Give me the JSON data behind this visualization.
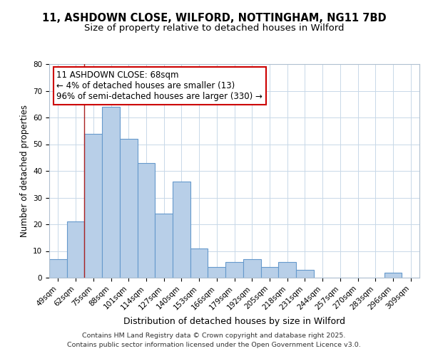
{
  "title1": "11, ASHDOWN CLOSE, WILFORD, NOTTINGHAM, NG11 7BD",
  "title2": "Size of property relative to detached houses in Wilford",
  "xlabel": "Distribution of detached houses by size in Wilford",
  "ylabel": "Number of detached properties",
  "categories": [
    "49sqm",
    "62sqm",
    "75sqm",
    "88sqm",
    "101sqm",
    "114sqm",
    "127sqm",
    "140sqm",
    "153sqm",
    "166sqm",
    "179sqm",
    "192sqm",
    "205sqm",
    "218sqm",
    "231sqm",
    "244sqm",
    "257sqm",
    "270sqm",
    "283sqm",
    "296sqm",
    "309sqm"
  ],
  "values": [
    7,
    21,
    54,
    64,
    52,
    43,
    24,
    36,
    11,
    4,
    6,
    7,
    4,
    6,
    3,
    0,
    0,
    0,
    0,
    2,
    0
  ],
  "bar_color": "#b8cfe8",
  "bar_edge_color": "#6699cc",
  "vline_color": "#aa2222",
  "annotation_line1": "11 ASHDOWN CLOSE: 68sqm",
  "annotation_line2": "← 4% of detached houses are smaller (13)",
  "annotation_line3": "96% of semi-detached houses are larger (330) →",
  "ylim": [
    0,
    80
  ],
  "yticks": [
    0,
    10,
    20,
    30,
    40,
    50,
    60,
    70,
    80
  ],
  "footer_line1": "Contains HM Land Registry data © Crown copyright and database right 2025.",
  "footer_line2": "Contains public sector information licensed under the Open Government Licence v3.0.",
  "bg_color": "#ffffff",
  "plot_bg_color": "#ffffff",
  "grid_color": "#c8d8e8",
  "title1_fontsize": 10.5,
  "title2_fontsize": 9.5,
  "xlabel_fontsize": 9,
  "ylabel_fontsize": 8.5,
  "tick_fontsize": 7.5,
  "annotation_fontsize": 8.5,
  "footer_fontsize": 6.8
}
